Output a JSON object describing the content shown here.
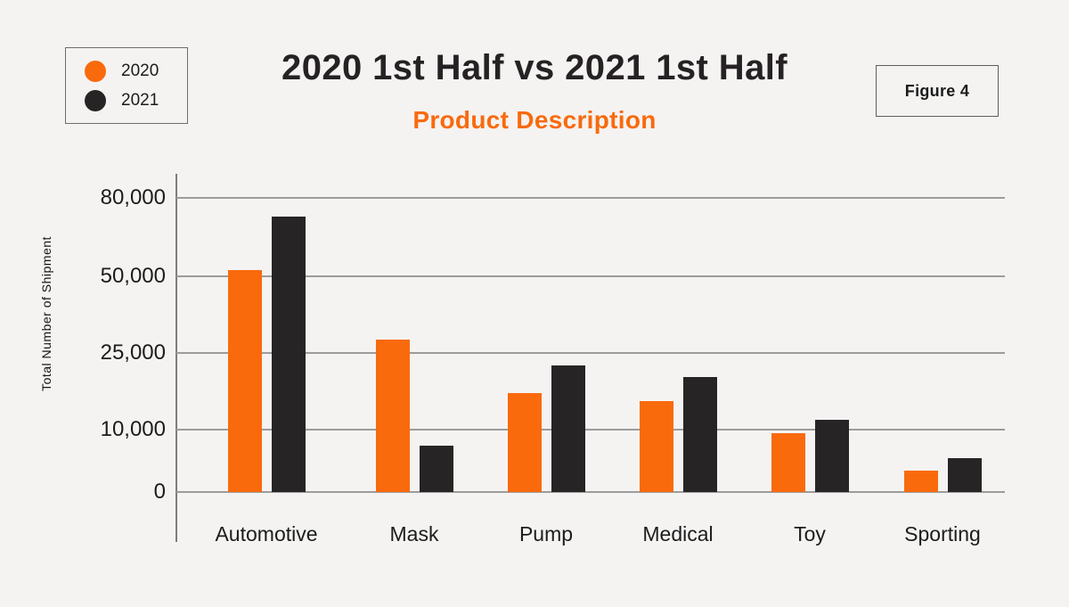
{
  "header": {
    "title": "2020 1st Half vs 2021 1st Half",
    "subtitle": "Product Description",
    "figure_label": "Figure 4"
  },
  "legend": {
    "items": [
      {
        "label": "2020",
        "color": "#f96a0d"
      },
      {
        "label": "2021",
        "color": "#262424"
      }
    ]
  },
  "colors": {
    "accent_orange": "#f96a0d",
    "bar_black": "#262424",
    "background": "#f4f3f2",
    "gridline": "#9c9c9c"
  },
  "chart_data": {
    "type": "bar",
    "title": "2020 1st Half vs 2021 1st Half",
    "subtitle": "Product Description",
    "xlabel": "Product Description",
    "ylabel": "Total Number of Shipment",
    "categories": [
      "Automotive",
      "Mask",
      "Pump",
      "Medical",
      "Toy",
      "Sporting"
    ],
    "series": [
      {
        "name": "2020",
        "color": "#f96a0d",
        "values": [
          52500,
          29400,
          17200,
          15500,
          9400,
          3400
        ]
      },
      {
        "name": "2021",
        "color": "#262424",
        "values": [
          73000,
          7500,
          22500,
          20300,
          12000,
          5400
        ]
      }
    ],
    "yticks": [
      0,
      10000,
      25000,
      50000,
      80000
    ],
    "ytick_labels": [
      "0",
      "10,000",
      "25,000",
      "50,000",
      "80,000"
    ],
    "ylim": [
      0,
      88000
    ],
    "grid": true,
    "legend_position": "top-left",
    "y_scale": "piecewise-linear between labeled ticks (non-linear overall)"
  }
}
